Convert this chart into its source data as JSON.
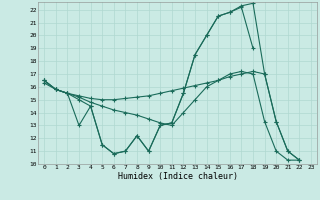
{
  "xlabel": "Humidex (Indice chaleur)",
  "bg_color": "#caeae4",
  "grid_color": "#b0d8d0",
  "line_color": "#1a6b5a",
  "xlim": [
    -0.5,
    23.5
  ],
  "ylim": [
    10,
    22.6
  ],
  "yticks": [
    10,
    11,
    12,
    13,
    14,
    15,
    16,
    17,
    18,
    19,
    20,
    21,
    22
  ],
  "xticks": [
    0,
    1,
    2,
    3,
    4,
    5,
    6,
    7,
    8,
    9,
    10,
    11,
    12,
    13,
    14,
    15,
    16,
    17,
    18,
    19,
    20,
    21,
    22,
    23
  ],
  "series1_x": [
    0,
    1,
    2,
    3,
    4,
    5,
    6,
    7,
    8,
    9,
    10,
    11,
    12,
    13,
    14,
    15,
    16,
    17,
    18
  ],
  "series1_y": [
    16.5,
    15.8,
    15.5,
    15.0,
    14.5,
    11.5,
    10.8,
    11.0,
    12.2,
    11.0,
    13.0,
    13.2,
    15.5,
    18.5,
    20.0,
    21.5,
    21.8,
    22.2,
    19.0
  ],
  "series2_x": [
    0,
    1,
    2,
    3,
    4,
    5,
    6,
    7,
    8,
    9,
    10,
    11,
    12,
    13,
    14,
    15,
    16,
    17,
    18,
    19,
    20,
    21,
    22
  ],
  "series2_y": [
    16.5,
    15.8,
    15.5,
    15.2,
    14.8,
    14.5,
    14.2,
    14.0,
    13.8,
    13.5,
    13.2,
    13.0,
    14.0,
    15.0,
    16.0,
    16.5,
    17.0,
    17.2,
    17.0,
    13.3,
    11.0,
    10.3,
    10.3
  ],
  "series3_x": [
    0,
    1,
    2,
    3,
    4,
    5,
    6,
    7,
    8,
    9,
    10,
    11,
    12,
    13,
    14,
    15,
    16,
    17,
    18,
    19,
    20,
    21,
    22
  ],
  "series3_y": [
    16.3,
    15.8,
    15.5,
    15.3,
    15.1,
    15.0,
    15.0,
    15.1,
    15.2,
    15.3,
    15.5,
    15.7,
    15.9,
    16.1,
    16.3,
    16.5,
    16.8,
    17.0,
    17.2,
    17.0,
    13.3,
    11.0,
    10.3
  ],
  "series4_x": [
    0,
    1,
    2,
    3,
    4,
    5,
    6,
    7,
    8,
    9,
    10,
    11,
    12,
    13,
    14,
    15,
    16,
    17,
    18,
    19,
    20,
    21,
    22
  ],
  "series4_y": [
    16.5,
    15.8,
    15.5,
    13.0,
    14.5,
    11.5,
    10.8,
    11.0,
    12.2,
    11.0,
    13.0,
    13.2,
    15.5,
    18.5,
    20.0,
    21.5,
    21.8,
    22.3,
    22.5,
    17.0,
    13.3,
    11.0,
    10.3
  ]
}
